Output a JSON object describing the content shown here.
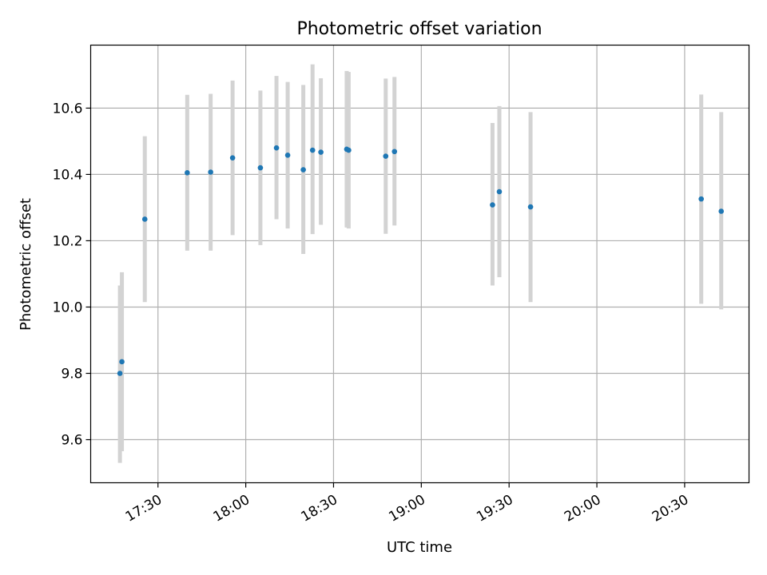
{
  "chart_data": {
    "type": "scatter",
    "title": "Photometric offset variation",
    "xlabel": "UTC time",
    "ylabel": "Photometric offset",
    "x_axis": "time",
    "xlim": [
      "17:07",
      "20:52"
    ],
    "ylim": [
      9.47,
      10.79
    ],
    "x_ticks": [
      "17:30",
      "18:00",
      "18:30",
      "19:00",
      "19:30",
      "20:00",
      "20:30"
    ],
    "y_ticks": [
      9.6,
      9.8,
      10.0,
      10.2,
      10.4,
      10.6
    ],
    "y_tick_labels": [
      "9.6",
      "9.8",
      "10.0",
      "10.2",
      "10.4",
      "10.6"
    ],
    "grid": true,
    "colors": {
      "point": "#1f77b4",
      "errorbar": "#d3d3d3",
      "grid": "#b0b0b0",
      "axis": "#000000"
    },
    "points": [
      {
        "t": "17:17:00",
        "y": 9.8,
        "lo": 9.53,
        "hi": 10.065
      },
      {
        "t": "17:17:40",
        "y": 9.835,
        "lo": 9.565,
        "hi": 10.105
      },
      {
        "t": "17:25:30",
        "y": 10.265,
        "lo": 10.015,
        "hi": 10.515
      },
      {
        "t": "17:40:00",
        "y": 10.405,
        "lo": 10.17,
        "hi": 10.64
      },
      {
        "t": "17:48:00",
        "y": 10.407,
        "lo": 10.17,
        "hi": 10.643
      },
      {
        "t": "17:55:30",
        "y": 10.45,
        "lo": 10.217,
        "hi": 10.683
      },
      {
        "t": "18:05:00",
        "y": 10.42,
        "lo": 10.187,
        "hi": 10.653
      },
      {
        "t": "18:10:30",
        "y": 10.48,
        "lo": 10.265,
        "hi": 10.697
      },
      {
        "t": "18:14:20",
        "y": 10.458,
        "lo": 10.237,
        "hi": 10.679
      },
      {
        "t": "18:19:40",
        "y": 10.414,
        "lo": 10.16,
        "hi": 10.67
      },
      {
        "t": "18:22:50",
        "y": 10.473,
        "lo": 10.22,
        "hi": 10.732
      },
      {
        "t": "18:25:40",
        "y": 10.467,
        "lo": 10.248,
        "hi": 10.69
      },
      {
        "t": "18:34:30",
        "y": 10.476,
        "lo": 10.24,
        "hi": 10.712
      },
      {
        "t": "18:35:10",
        "y": 10.473,
        "lo": 10.237,
        "hi": 10.709
      },
      {
        "t": "18:47:50",
        "y": 10.455,
        "lo": 10.221,
        "hi": 10.689
      },
      {
        "t": "18:50:50",
        "y": 10.469,
        "lo": 10.246,
        "hi": 10.694
      },
      {
        "t": "19:24:20",
        "y": 10.308,
        "lo": 10.065,
        "hi": 10.555
      },
      {
        "t": "19:26:40",
        "y": 10.348,
        "lo": 10.09,
        "hi": 10.606
      },
      {
        "t": "19:37:20",
        "y": 10.302,
        "lo": 10.015,
        "hi": 10.588
      },
      {
        "t": "20:35:40",
        "y": 10.326,
        "lo": 10.01,
        "hi": 10.641
      },
      {
        "t": "20:42:30",
        "y": 10.289,
        "lo": 9.993,
        "hi": 10.588
      }
    ]
  }
}
